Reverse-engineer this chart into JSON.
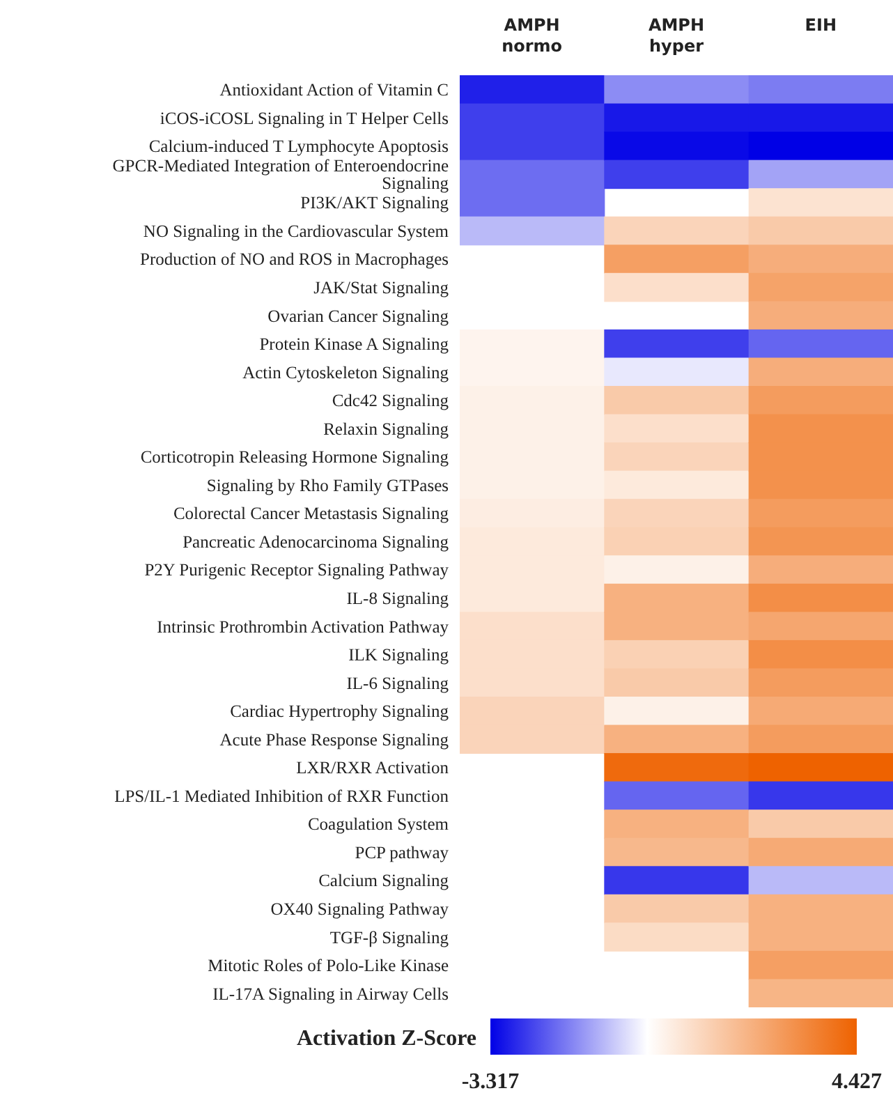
{
  "chart_data": {
    "type": "heatmap",
    "categories": [
      "AMPH normo",
      "AMPH hyper",
      "EIH"
    ],
    "y_categories": [
      "Antioxidant Action of Vitamin C",
      "iCOS-iCOSL Signaling in T Helper Cells",
      "Calcium-induced T Lymphocyte Apoptosis",
      "GPCR-Mediated Integration of Enteroendocrine Signaling",
      "PI3K/AKT Signaling",
      "NO Signaling in the Cardiovascular System",
      "Production of NO and ROS in Macrophages",
      "JAK/Stat Signaling",
      "Ovarian Cancer Signaling",
      "Protein Kinase A Signaling",
      "Actin Cytoskeleton Signaling",
      "Cdc42 Signaling",
      "Relaxin Signaling",
      "Corticotropin Releasing Hormone Signaling",
      "Signaling by Rho Family GTPases",
      "Colorectal Cancer Metastasis Signaling",
      "Pancreatic Adenocarcinoma Signaling",
      "P2Y Purigenic Receptor Signaling Pathway",
      "IL-8 Signaling",
      "Intrinsic Prothrombin Activation Pathway",
      "ILK Signaling",
      "IL-6 Signaling",
      "Cardiac Hypertrophy Signaling",
      "Acute Phase Response Signaling",
      "LXR/RXR Activation",
      "LPS/IL-1 Mediated Inhibition of RXR Function",
      "Coagulation System",
      "PCP pathway",
      "Calcium Signaling",
      "OX40 Signaling Pathway",
      "TGF-β Signaling",
      "Mitotic Roles of Polo-Like Kinase",
      "IL-17A Signaling in Airway Cells"
    ],
    "cells": [
      [
        -2.9,
        -1.5,
        -1.7
      ],
      [
        -2.5,
        -3.0,
        -3.0
      ],
      [
        -2.5,
        -3.2,
        -3.317
      ],
      [
        -1.9,
        -2.5,
        -1.2
      ],
      [
        -1.9,
        null,
        0.8
      ],
      [
        -0.9,
        1.2,
        1.5
      ],
      [
        null,
        2.7,
        2.3
      ],
      [
        null,
        0.9,
        2.6
      ],
      [
        null,
        null,
        2.3
      ],
      [
        0.3,
        -2.5,
        -2.0
      ],
      [
        0.3,
        -0.3,
        2.3
      ],
      [
        0.4,
        1.5,
        2.8
      ],
      [
        0.4,
        0.9,
        3.1
      ],
      [
        0.4,
        1.2,
        3.1
      ],
      [
        0.4,
        0.6,
        3.1
      ],
      [
        0.5,
        1.2,
        2.8
      ],
      [
        0.6,
        1.3,
        3.0
      ],
      [
        0.6,
        0.4,
        2.3
      ],
      [
        0.6,
        2.2,
        3.2
      ],
      [
        0.9,
        2.2,
        2.5
      ],
      [
        0.9,
        1.3,
        3.2
      ],
      [
        0.9,
        1.5,
        2.8
      ],
      [
        1.2,
        0.4,
        2.4
      ],
      [
        1.2,
        2.2,
        2.8
      ],
      [
        null,
        4.2,
        4.427
      ],
      [
        null,
        -2.0,
        -2.6
      ],
      [
        null,
        2.2,
        1.5
      ],
      [
        null,
        2.0,
        2.4
      ],
      [
        null,
        -2.6,
        -0.9
      ],
      [
        null,
        1.5,
        2.2
      ],
      [
        null,
        1.0,
        2.2
      ],
      [
        null,
        null,
        2.7
      ],
      [
        null,
        null,
        2.1
      ]
    ],
    "clabel": "Activation Z-Score",
    "clim": [
      -3.317,
      4.427
    ],
    "cticks": [
      -3.317,
      4.427
    ]
  }
}
